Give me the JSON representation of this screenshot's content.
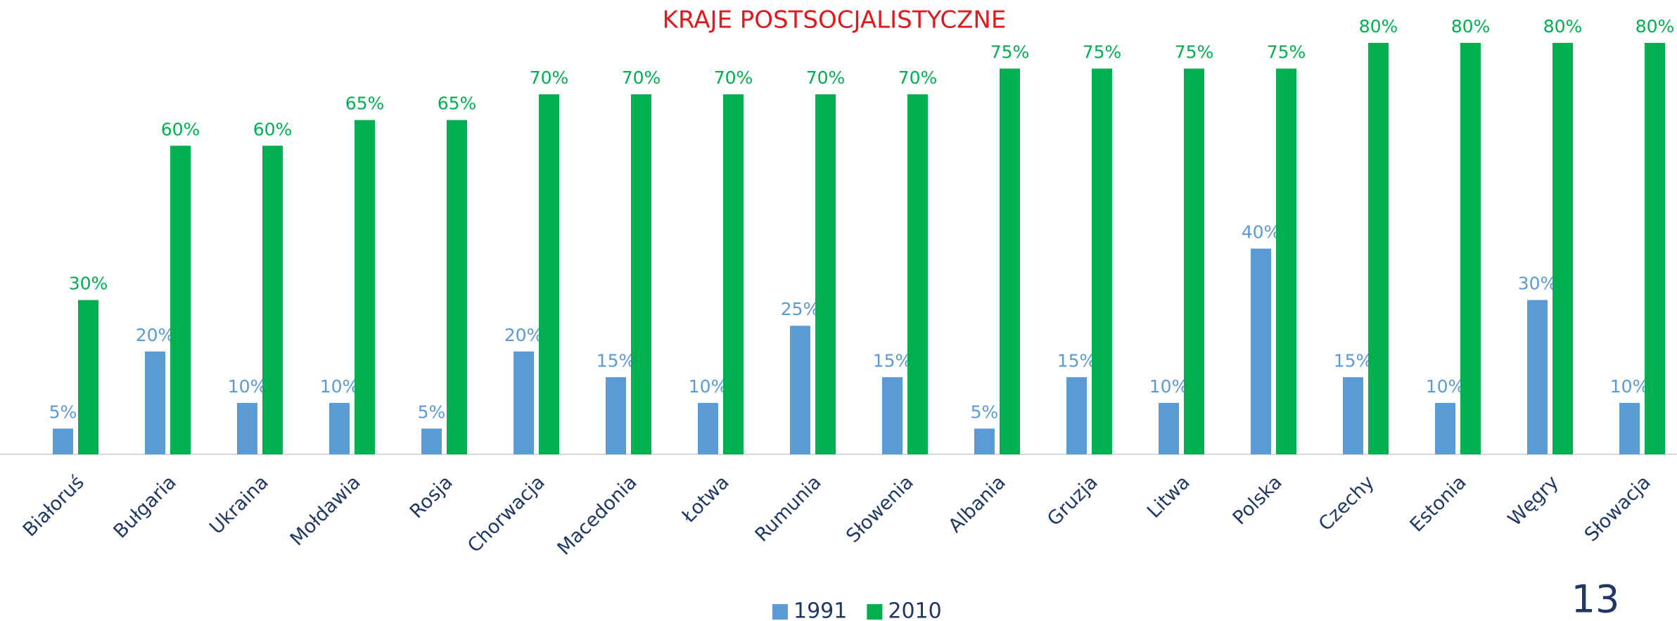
{
  "chart_data": {
    "type": "bar",
    "title": "KRAJE POSTSOCJALISTYCZNE",
    "categories": [
      "Białoruś",
      "Bułgaria",
      "Ukraina",
      "Mołdawia",
      "Rosja",
      "Chorwacja",
      "Macedonia",
      "Łotwa",
      "Rumunia",
      "Słowenia",
      "Albania",
      "Gruzja",
      "Litwa",
      "Polska",
      "Czechy",
      "Estonia",
      "Węgry",
      "Słowacja"
    ],
    "series": [
      {
        "name": "1991",
        "color": "#5b9bd5",
        "values": [
          5,
          20,
          10,
          10,
          5,
          20,
          15,
          10,
          25,
          15,
          5,
          15,
          10,
          40,
          15,
          10,
          30,
          10
        ],
        "value_labels": [
          "5%",
          "20%",
          "10%",
          "10%",
          "5%",
          "20%",
          "15%",
          "10%",
          "25%",
          "15%",
          "5%",
          "15%",
          "10%",
          "40%",
          "15%",
          "10%",
          "30%",
          "10%"
        ]
      },
      {
        "name": "2010",
        "color": "#00b050",
        "values": [
          30,
          60,
          60,
          65,
          65,
          70,
          70,
          70,
          70,
          70,
          75,
          75,
          75,
          75,
          80,
          80,
          80,
          80
        ],
        "value_labels": [
          "30%",
          "60%",
          "60%",
          "65%",
          "65%",
          "70%",
          "70%",
          "70%",
          "70%",
          "70%",
          "75%",
          "75%",
          "75%",
          "75%",
          "80%",
          "80%",
          "80%",
          "80%"
        ]
      }
    ],
    "ylim": [
      0,
      80
    ],
    "grid": false,
    "legend": "bottom"
  },
  "page_number": "13"
}
